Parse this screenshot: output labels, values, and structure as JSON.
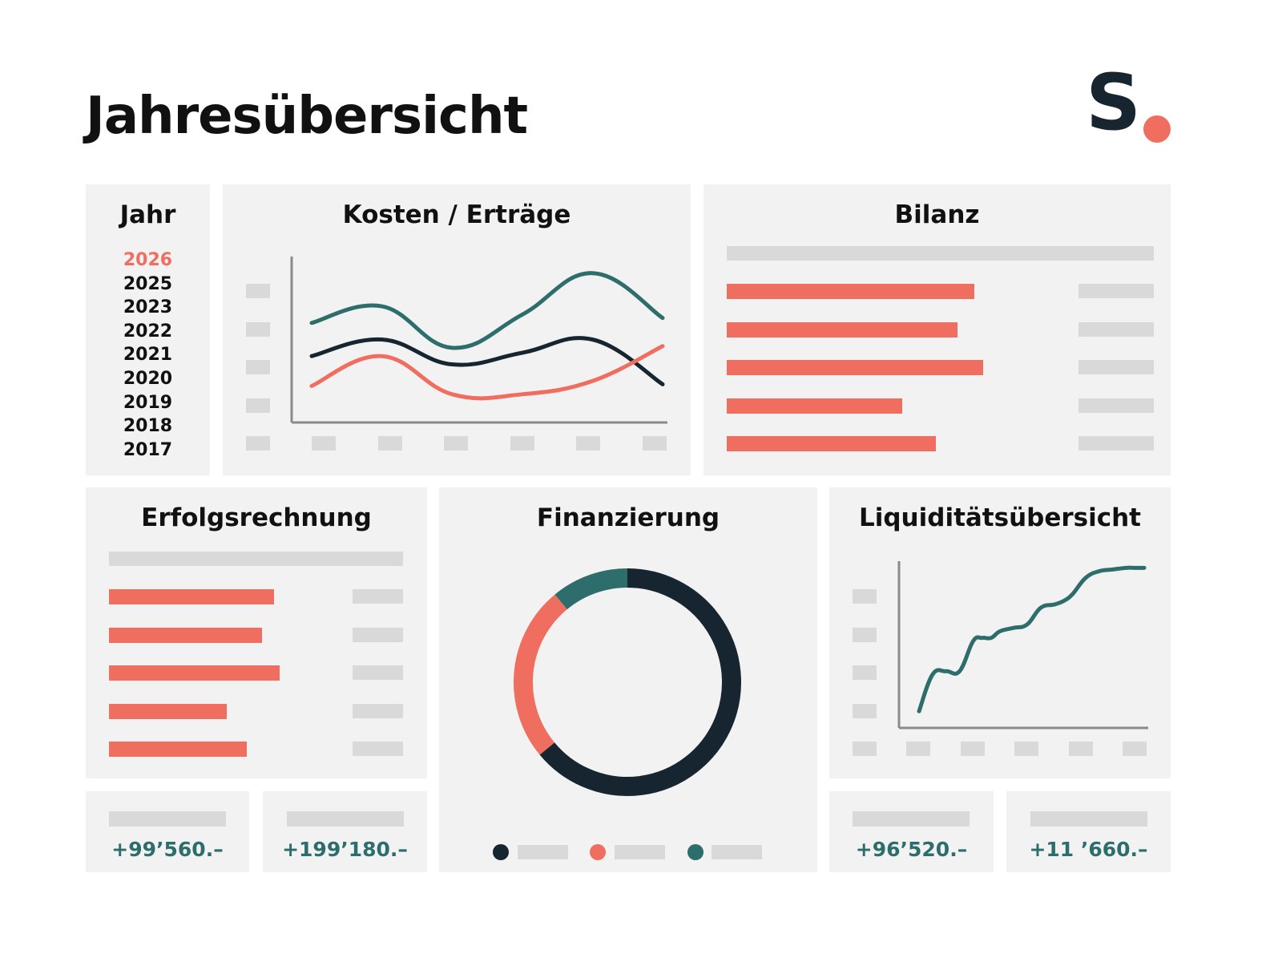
{
  "header": {
    "title": "Jahresübersicht",
    "logo_text": "S",
    "logo_dot_color": "#f06e60"
  },
  "colors": {
    "coral": "#f06e60",
    "navy": "#16252f",
    "teal": "#2d6d6b",
    "panel": "#f2f2f2",
    "placeholder": "#d9d9d9"
  },
  "years": {
    "title": "Jahr",
    "selected": "2026",
    "items": [
      "2026",
      "2025",
      "2023",
      "2022",
      "2021",
      "2020",
      "2019",
      "2018",
      "2017"
    ]
  },
  "panels": {
    "kosten_ertraege": {
      "title": "Kosten / Erträge"
    },
    "bilanz": {
      "title": "Bilanz"
    },
    "erfolgsrechnung": {
      "title": "Erfolgsrechnung"
    },
    "finanzierung": {
      "title": "Finanzierung"
    },
    "liquiditaet": {
      "title": "Liquiditätsübersicht"
    }
  },
  "kpis": {
    "k1": "+99’560.–",
    "k2": "+199’180.–",
    "k3": "+96’520.–",
    "k4": "+11 ’660.–"
  },
  "chart_data": [
    {
      "id": "kosten_ertraege",
      "type": "line",
      "title": "Kosten / Erträge",
      "x": [
        1,
        2,
        3,
        4,
        5,
        6
      ],
      "ylim": [
        0,
        100
      ],
      "series": [
        {
          "name": "teal",
          "color": "#2d6d6b",
          "values": [
            60,
            70,
            45,
            65,
            90,
            63
          ]
        },
        {
          "name": "navy",
          "color": "#16252f",
          "values": [
            40,
            50,
            35,
            42,
            50,
            23
          ]
        },
        {
          "name": "coral",
          "color": "#f06e60",
          "values": [
            22,
            40,
            17,
            17,
            25,
            46
          ]
        }
      ]
    },
    {
      "id": "bilanz",
      "type": "bar",
      "orientation": "horizontal",
      "title": "Bilanz",
      "categories": [
        "1",
        "2",
        "3",
        "4",
        "5"
      ],
      "values": [
        58,
        54,
        60,
        41,
        49
      ],
      "xlim": [
        0,
        100
      ]
    },
    {
      "id": "erfolgsrechnung",
      "type": "bar",
      "orientation": "horizontal",
      "title": "Erfolgsrechnung",
      "categories": [
        "1",
        "2",
        "3",
        "4",
        "5"
      ],
      "values": [
        56,
        52,
        58,
        40,
        47
      ],
      "xlim": [
        0,
        100
      ]
    },
    {
      "id": "finanzierung",
      "type": "pie",
      "donut": true,
      "title": "Finanzierung",
      "slices": [
        {
          "name": "navy",
          "color": "#16252f",
          "value": 64
        },
        {
          "name": "coral",
          "color": "#f06e60",
          "value": 25
        },
        {
          "name": "teal",
          "color": "#2d6d6b",
          "value": 11
        }
      ]
    },
    {
      "id": "liquiditaet",
      "type": "line",
      "title": "Liquiditätsübersicht",
      "ylim": [
        0,
        100
      ],
      "series": [
        {
          "name": "teal",
          "color": "#2d6d6b",
          "x": [
            0,
            6,
            12,
            18,
            24,
            28,
            32,
            36,
            42,
            48,
            54,
            60,
            64,
            68,
            74,
            80,
            86,
            92,
            96,
            100
          ],
          "values": [
            10,
            32,
            34,
            34,
            52,
            54,
            54,
            58,
            60,
            62,
            72,
            74,
            76,
            80,
            90,
            94,
            95,
            96,
            96,
            96
          ]
        }
      ]
    }
  ]
}
